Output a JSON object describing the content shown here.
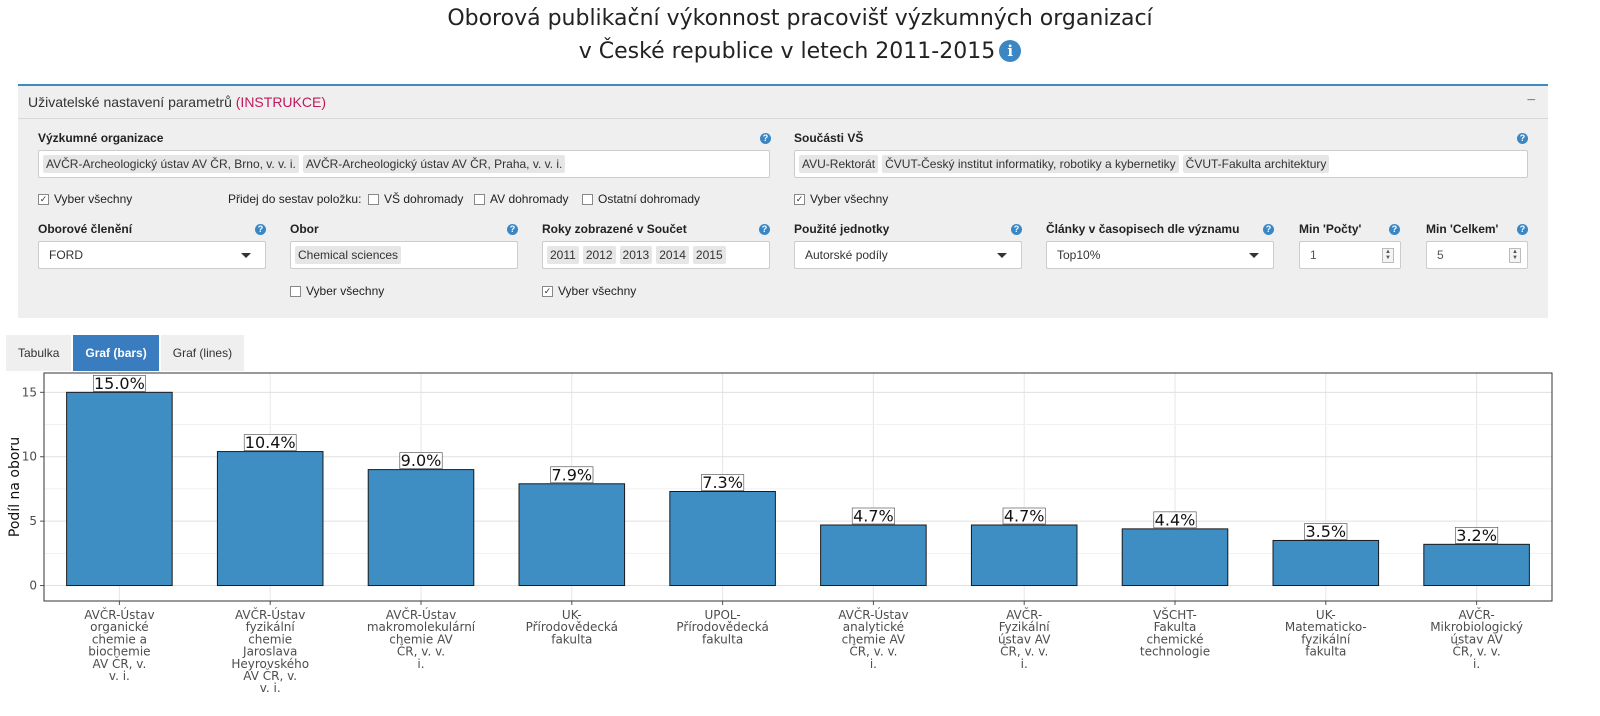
{
  "page": {
    "title_line1": "Oborová publikační výkonnost pracovišť výzkumných organizací",
    "title_line2": "v České republice v letech 2011-2015",
    "info_icon": "i"
  },
  "settings": {
    "title": "Uživatelské nastavení parametrů",
    "instructions_link": "(INSTRUKCE)",
    "collapse_symbol": "−",
    "research_orgs": {
      "label": "Výzkumné organizace",
      "chips": [
        "AVČR-Archeologický ústav AV ČR, Brno, v. v. i.",
        "AVČR-Archeologický ústav AV ČR, Praha, v. v. i."
      ]
    },
    "university_parts": {
      "label": "Součásti VŠ",
      "chips": [
        "AVU-Rektorát",
        "ČVUT-Český institut informatiky, robotiky a kybernetiky",
        "ČVUT-Fakulta architektury"
      ]
    },
    "select_all_orgs": "Vyber všechny",
    "add_items_label": "Přidej do sestav položku:",
    "vs_together": "VŠ dohromady",
    "av_together": "AV dohromady",
    "other_together": "Ostatní dohromady",
    "select_all_univ": "Vyber všechny",
    "field_division": {
      "label": "Oborové členění",
      "value": "FORD"
    },
    "field": {
      "label": "Obor",
      "chips": [
        "Chemical sciences"
      ]
    },
    "select_all_fields": "Vyber všechny",
    "years": {
      "label": "Roky zobrazené v Součet",
      "chips": [
        "2011",
        "2012",
        "2013",
        "2014",
        "2015"
      ]
    },
    "select_all_years": "Vyber všechny",
    "units": {
      "label": "Použité jednotky",
      "value": "Autorské podíly"
    },
    "articles": {
      "label": "Články v časopisech dle významu",
      "value": "Top10%"
    },
    "min_counts": {
      "label": "Min 'Počty'",
      "value": "1"
    },
    "min_total": {
      "label": "Min 'Celkem'",
      "value": "5"
    },
    "help_symbol": "?",
    "check_mark": "✓"
  },
  "tabs": [
    "Tabulka",
    "Graf (bars)",
    "Graf (lines)"
  ],
  "active_tab": "Graf (bars)",
  "chart_data": {
    "type": "bar",
    "ylabel": "Podíl na oboru",
    "ylim": [
      -1.2,
      16.5
    ],
    "yticks": [
      0,
      5,
      10,
      15
    ],
    "bar_color": "#3e8ec4",
    "grid": true,
    "categories": [
      [
        "AVČR-Ústav",
        "organické",
        "chemie a",
        "biochemie",
        "AV ČR, v.",
        "v. i."
      ],
      [
        "AVČR-Ústav",
        "fyzikální",
        "chemie",
        "Jaroslava",
        "Heyrovského",
        "AV ČR, v.",
        "v. i."
      ],
      [
        "AVČR-Ústav",
        "makromolekulární",
        "chemie AV",
        "ČR, v. v.",
        "i."
      ],
      [
        "UK-",
        "Přírodovědecká",
        "fakulta"
      ],
      [
        "UPOL-",
        "Přírodovědecká",
        "fakulta"
      ],
      [
        "AVČR-Ústav",
        "analytické",
        "chemie AV",
        "ČR, v. v.",
        "i."
      ],
      [
        "AVČR-",
        "Fyzikální",
        "ústav AV",
        "ČR, v. v.",
        "i."
      ],
      [
        "VŠCHT-",
        "Fakulta",
        "chemické",
        "technologie"
      ],
      [
        "UK-",
        "Matematicko-",
        "fyzikální",
        "fakulta"
      ],
      [
        "AVČR-",
        "Mikrobiologický",
        "ústav AV",
        "ČR, v. v.",
        "i."
      ]
    ],
    "values": [
      15.0,
      10.4,
      9.0,
      7.9,
      7.3,
      4.7,
      4.7,
      4.4,
      3.5,
      3.2
    ],
    "data_labels": [
      "15.0%",
      "10.4%",
      "9.0%",
      "7.9%",
      "7.3%",
      "4.7%",
      "4.7%",
      "4.4%",
      "3.5%",
      "3.2%"
    ]
  }
}
